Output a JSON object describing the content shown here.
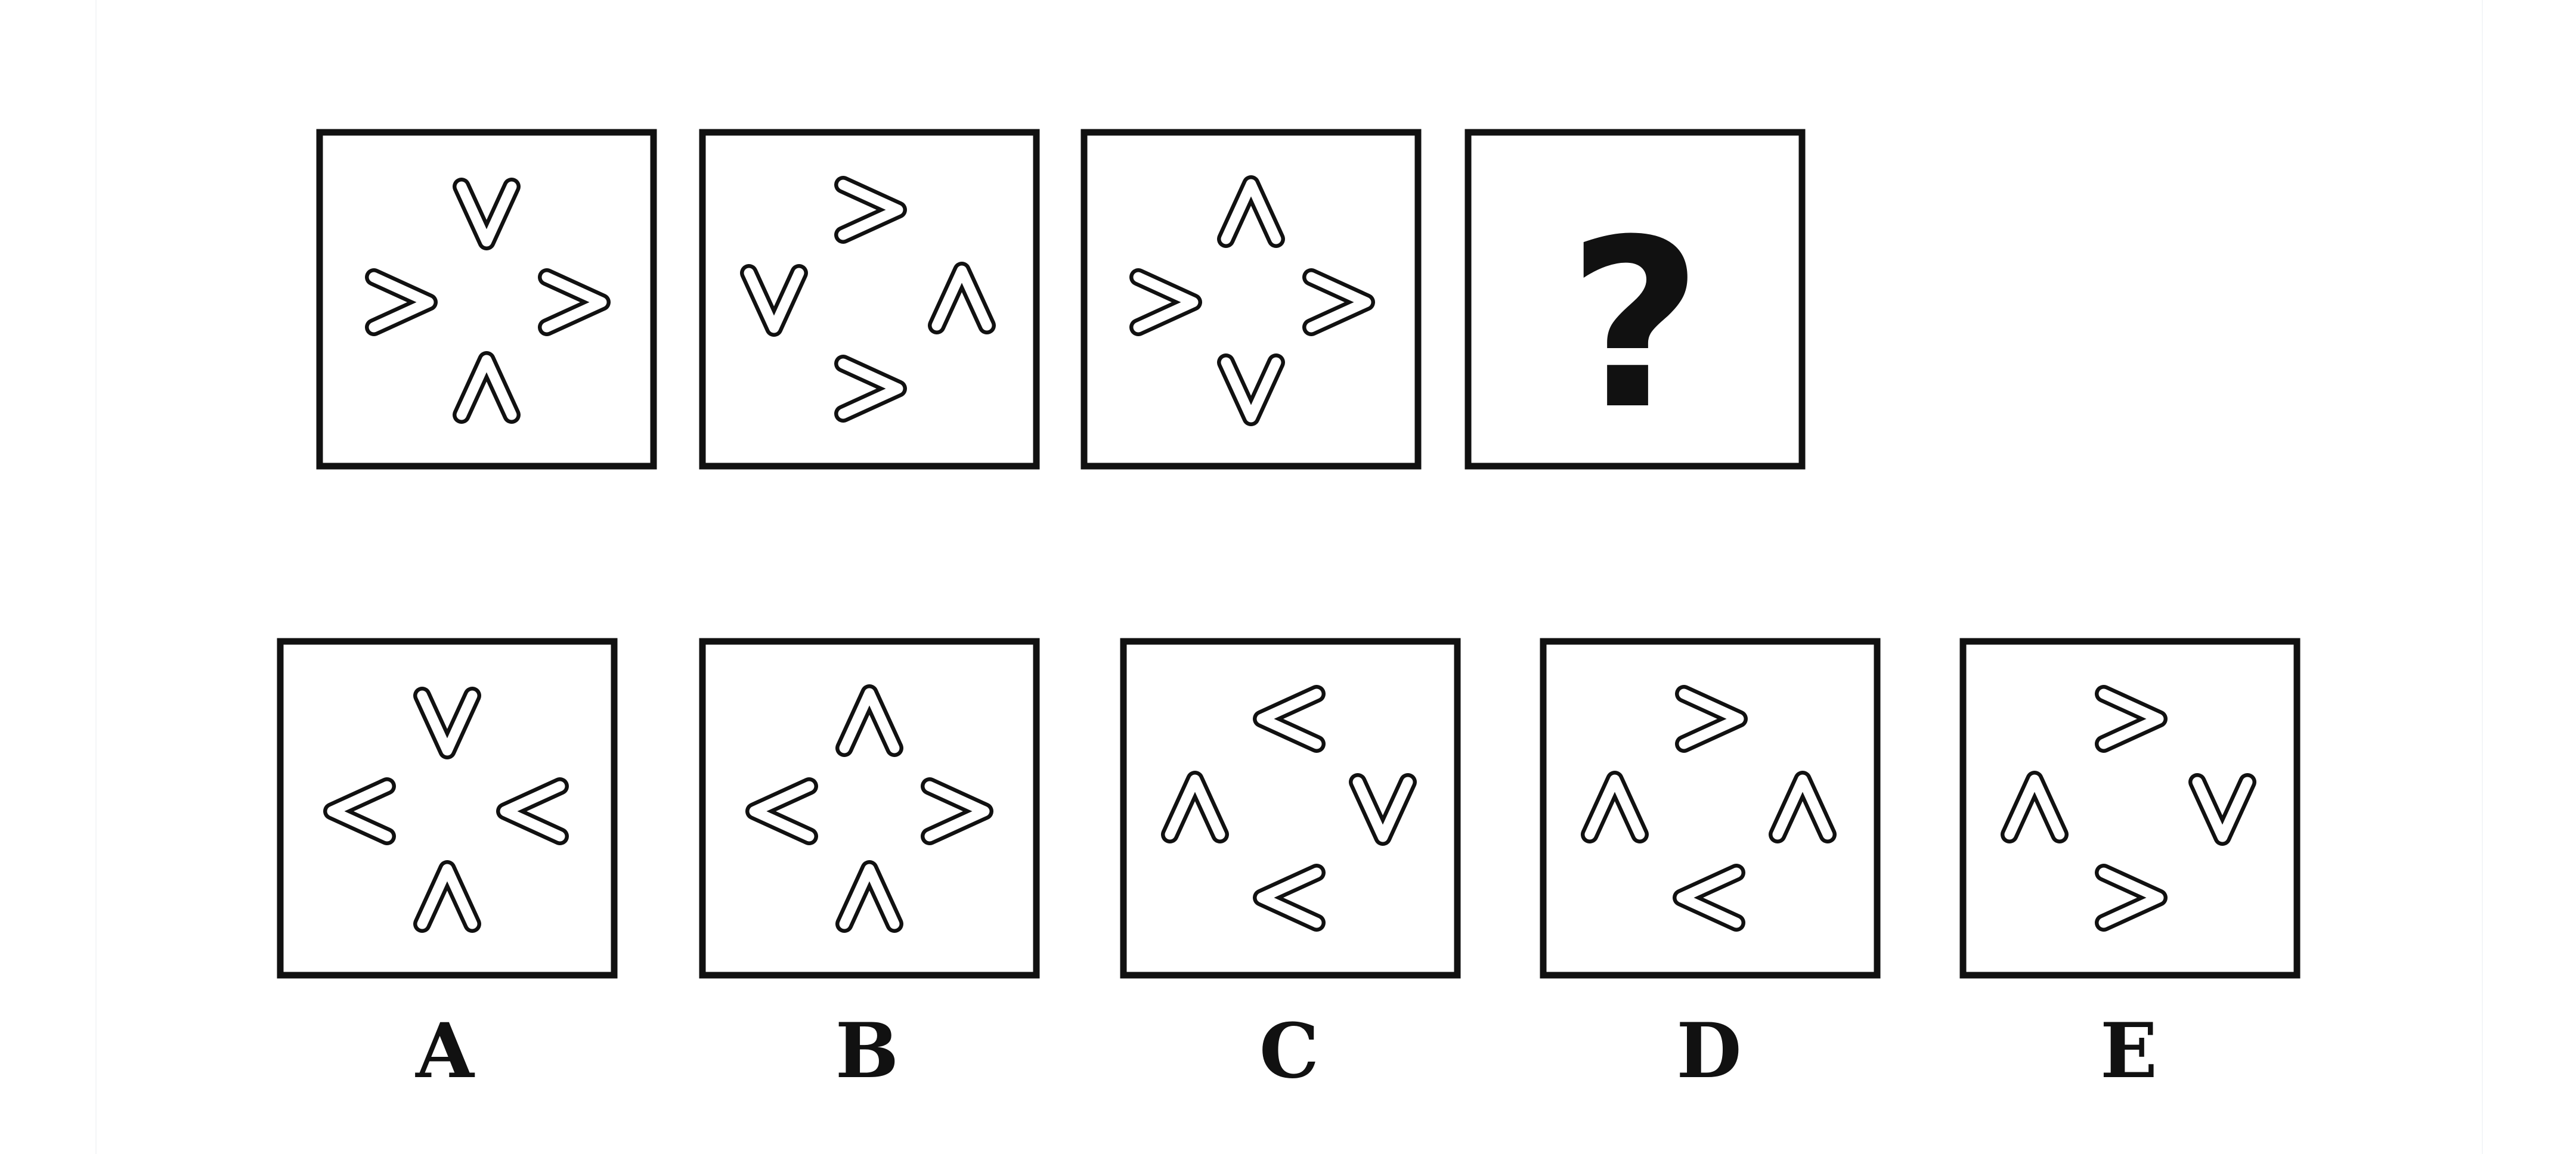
{
  "colors": {
    "frame": "#111111",
    "glyph_outline": "#111111",
    "glyph_fill": "#ffffff",
    "question_mark": "#111111"
  },
  "sequence": [
    {
      "glyphs": [
        "v",
        ">",
        ">",
        "^"
      ]
    },
    {
      "glyphs": [
        ">",
        "v",
        "^",
        ">"
      ]
    },
    {
      "glyphs": [
        "^",
        ">",
        ">",
        "v"
      ]
    },
    {
      "question_mark": "?"
    }
  ],
  "options": [
    {
      "letter": "A",
      "glyphs": [
        "v",
        "<",
        "<",
        "^"
      ]
    },
    {
      "letter": "B",
      "glyphs": [
        "^",
        "<",
        ">",
        "^"
      ]
    },
    {
      "letter": "C",
      "glyphs": [
        "<",
        "^",
        "v",
        "<"
      ]
    },
    {
      "letter": "D",
      "glyphs": [
        ">",
        "^",
        "^",
        "<"
      ]
    },
    {
      "letter": "E",
      "glyphs": [
        ">",
        "^",
        "v",
        ">"
      ]
    }
  ]
}
